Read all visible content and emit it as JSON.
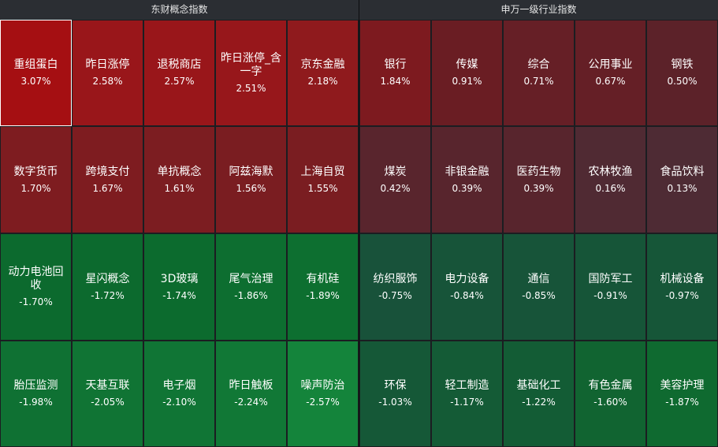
{
  "left_panel": {
    "title": "东财概念指数",
    "tiles": [
      {
        "name": "重组蛋白",
        "pct": "3.07%",
        "color": "#a50f12",
        "selected": true
      },
      {
        "name": "昨日涨停",
        "pct": "2.58%",
        "color": "#99161a"
      },
      {
        "name": "退税商店",
        "pct": "2.57%",
        "color": "#99161a"
      },
      {
        "name": "昨日涨停_含一字",
        "pct": "2.51%",
        "color": "#97171b"
      },
      {
        "name": "京东金融",
        "pct": "2.18%",
        "color": "#8f1a1d"
      },
      {
        "name": "数字货币",
        "pct": "1.70%",
        "color": "#7e1c20"
      },
      {
        "name": "跨境支付",
        "pct": "1.67%",
        "color": "#7e1c20"
      },
      {
        "name": "单抗概念",
        "pct": "1.61%",
        "color": "#7c1d21"
      },
      {
        "name": "阿兹海默",
        "pct": "1.56%",
        "color": "#7a1d21"
      },
      {
        "name": "上海自贸",
        "pct": "1.55%",
        "color": "#7a1d21"
      },
      {
        "name": "动力电池回收",
        "pct": "-1.70%",
        "color": "#0c6a2e"
      },
      {
        "name": "星闪概念",
        "pct": "-1.72%",
        "color": "#0c6a2e"
      },
      {
        "name": "3D玻璃",
        "pct": "-1.74%",
        "color": "#0c6b2e"
      },
      {
        "name": "尾气治理",
        "pct": "-1.86%",
        "color": "#0d6e30"
      },
      {
        "name": "有机硅",
        "pct": "-1.89%",
        "color": "#0d6f30"
      },
      {
        "name": "胎压监测",
        "pct": "-1.98%",
        "color": "#0f7133"
      },
      {
        "name": "天基互联",
        "pct": "-2.05%",
        "color": "#107434"
      },
      {
        "name": "电子烟",
        "pct": "-2.10%",
        "color": "#107535"
      },
      {
        "name": "昨日触板",
        "pct": "-2.24%",
        "color": "#117836"
      },
      {
        "name": "噪声防治",
        "pct": "-2.57%",
        "color": "#14843b"
      }
    ]
  },
  "right_panel": {
    "title": "申万一级行业指数",
    "tiles": [
      {
        "name": "银行",
        "pct": "1.84%",
        "color": "#7d1a1f"
      },
      {
        "name": "传媒",
        "pct": "0.91%",
        "color": "#6a1d23"
      },
      {
        "name": "综合",
        "pct": "0.71%",
        "color": "#661f26"
      },
      {
        "name": "公用事业",
        "pct": "0.67%",
        "color": "#651f26"
      },
      {
        "name": "钢铁",
        "pct": "0.50%",
        "color": "#5c2229"
      },
      {
        "name": "煤炭",
        "pct": "0.42%",
        "color": "#59252d"
      },
      {
        "name": "非银金融",
        "pct": "0.39%",
        "color": "#58252d"
      },
      {
        "name": "医药生物",
        "pct": "0.39%",
        "color": "#58252d"
      },
      {
        "name": "农林牧渔",
        "pct": "0.16%",
        "color": "#502a33"
      },
      {
        "name": "食品饮料",
        "pct": "0.13%",
        "color": "#4e2b34"
      },
      {
        "name": "纺织服饰",
        "pct": "-0.75%",
        "color": "#18523a"
      },
      {
        "name": "电力设备",
        "pct": "-0.84%",
        "color": "#175439"
      },
      {
        "name": "通信",
        "pct": "-0.85%",
        "color": "#175439"
      },
      {
        "name": "国防军工",
        "pct": "-0.91%",
        "color": "#165538"
      },
      {
        "name": "机械设备",
        "pct": "-0.97%",
        "color": "#165638"
      },
      {
        "name": "环保",
        "pct": "-1.03%",
        "color": "#155837"
      },
      {
        "name": "轻工制造",
        "pct": "-1.17%",
        "color": "#145b36"
      },
      {
        "name": "基础化工",
        "pct": "-1.22%",
        "color": "#135c35"
      },
      {
        "name": "有色金属",
        "pct": "-1.60%",
        "color": "#116431"
      },
      {
        "name": "美容护理",
        "pct": "-1.87%",
        "color": "#0f6a30"
      }
    ]
  }
}
